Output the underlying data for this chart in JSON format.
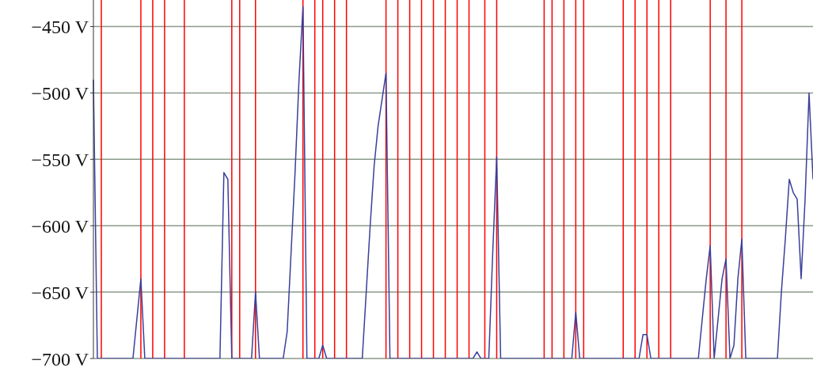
{
  "chart_data": {
    "type": "line",
    "tick_labels": "y",
    "grid": "y",
    "marker": "none",
    "line_style": "solid",
    "ylim": [
      -700,
      -430
    ],
    "yticks": [
      {
        "value": -700,
        "label": "−700 V"
      },
      {
        "value": -650,
        "label": "−650 V"
      },
      {
        "value": -600,
        "label": "−600 V"
      },
      {
        "value": -550,
        "label": "−550 V"
      },
      {
        "value": -500,
        "label": "−500 V"
      },
      {
        "value": -450,
        "label": "−450 V"
      }
    ],
    "categories": [
      null,
      null,
      null,
      null,
      null,
      null,
      null,
      null,
      null,
      null,
      null,
      null,
      null,
      null,
      null,
      null,
      null,
      null,
      null,
      null,
      null,
      null,
      null,
      null,
      null,
      null,
      null,
      null,
      null,
      null,
      null,
      null,
      null,
      null,
      null,
      null,
      null,
      null,
      null,
      null,
      null,
      null,
      null,
      null,
      null,
      null,
      null,
      null,
      null,
      null,
      null,
      null,
      null,
      null,
      null,
      null,
      null,
      null,
      null,
      null,
      null,
      null,
      null,
      null,
      null,
      null,
      null,
      null,
      null,
      null,
      null,
      null,
      null,
      null,
      null,
      null,
      null,
      null,
      null,
      null,
      null,
      null,
      null,
      null,
      null,
      null,
      null,
      null,
      null,
      null,
      null,
      null,
      null,
      null,
      null,
      null,
      null,
      null,
      null,
      null,
      null,
      null,
      null,
      null,
      null,
      null,
      null,
      null,
      null,
      null,
      null,
      null,
      null,
      null,
      null,
      null,
      null,
      null,
      null,
      null,
      null,
      null,
      null,
      null,
      null,
      null,
      null,
      null,
      null,
      null,
      null,
      null,
      null,
      null,
      null,
      null,
      null,
      null,
      null,
      null,
      null,
      null,
      null,
      null,
      null,
      null,
      null,
      null,
      null,
      null,
      null,
      null,
      null,
      null,
      null,
      null,
      null,
      null,
      null,
      null,
      null,
      null,
      null,
      null,
      null,
      null,
      null,
      null,
      null,
      null,
      null,
      null,
      null,
      null,
      null,
      null,
      null,
      null,
      null,
      null,
      null,
      null,
      null
    ],
    "series": [
      {
        "color": "#3b3f9a",
        "values": [
          -490,
          -700,
          -700,
          -700,
          -700,
          -700,
          -700,
          -700,
          -700,
          -700,
          -700,
          -670,
          -640,
          -700,
          -700,
          -700,
          -700,
          -700,
          -700,
          -700,
          -700,
          -700,
          -700,
          -700,
          -700,
          -700,
          -700,
          -700,
          -700,
          -700,
          -700,
          -700,
          -700,
          -560,
          -565,
          -700,
          -700,
          -700,
          -700,
          -700,
          -700,
          -650,
          -700,
          -700,
          -700,
          -700,
          -700,
          -700,
          -700,
          -680,
          -620,
          -560,
          -490,
          -435,
          -700,
          -700,
          -700,
          -700,
          -690,
          -700,
          -700,
          -700,
          -700,
          -700,
          -700,
          -700,
          -700,
          -700,
          -700,
          -650,
          -600,
          -555,
          -525,
          -505,
          -485,
          -700,
          -700,
          -700,
          -700,
          -700,
          -700,
          -700,
          -700,
          -700,
          -700,
          -700,
          -700,
          -700,
          -700,
          -700,
          -700,
          -700,
          -700,
          -700,
          -700,
          -700,
          -700,
          -695,
          -700,
          -700,
          -700,
          -620,
          -548,
          -700,
          -700,
          -700,
          -700,
          -700,
          -700,
          -700,
          -700,
          -700,
          -700,
          -700,
          -700,
          -700,
          -700,
          -700,
          -700,
          -700,
          -700,
          -700,
          -665,
          -700,
          -700,
          -700,
          -700,
          -700,
          -700,
          -700,
          -700,
          -700,
          -700,
          -700,
          -700,
          -700,
          -700,
          -700,
          -700,
          -682,
          -682,
          -700,
          -700,
          -700,
          -700,
          -700,
          -700,
          -700,
          -700,
          -700,
          -700,
          -700,
          -700,
          -700,
          -670,
          -640,
          -615,
          -700,
          -670,
          -640,
          -625,
          -700,
          -690,
          -640,
          -610,
          -700,
          -700,
          -700,
          -700,
          -700,
          -700,
          -700,
          -700,
          -700,
          -650,
          -610,
          -565,
          -575,
          -580,
          -640,
          -580,
          -500,
          -565
        ]
      }
    ]
  }
}
